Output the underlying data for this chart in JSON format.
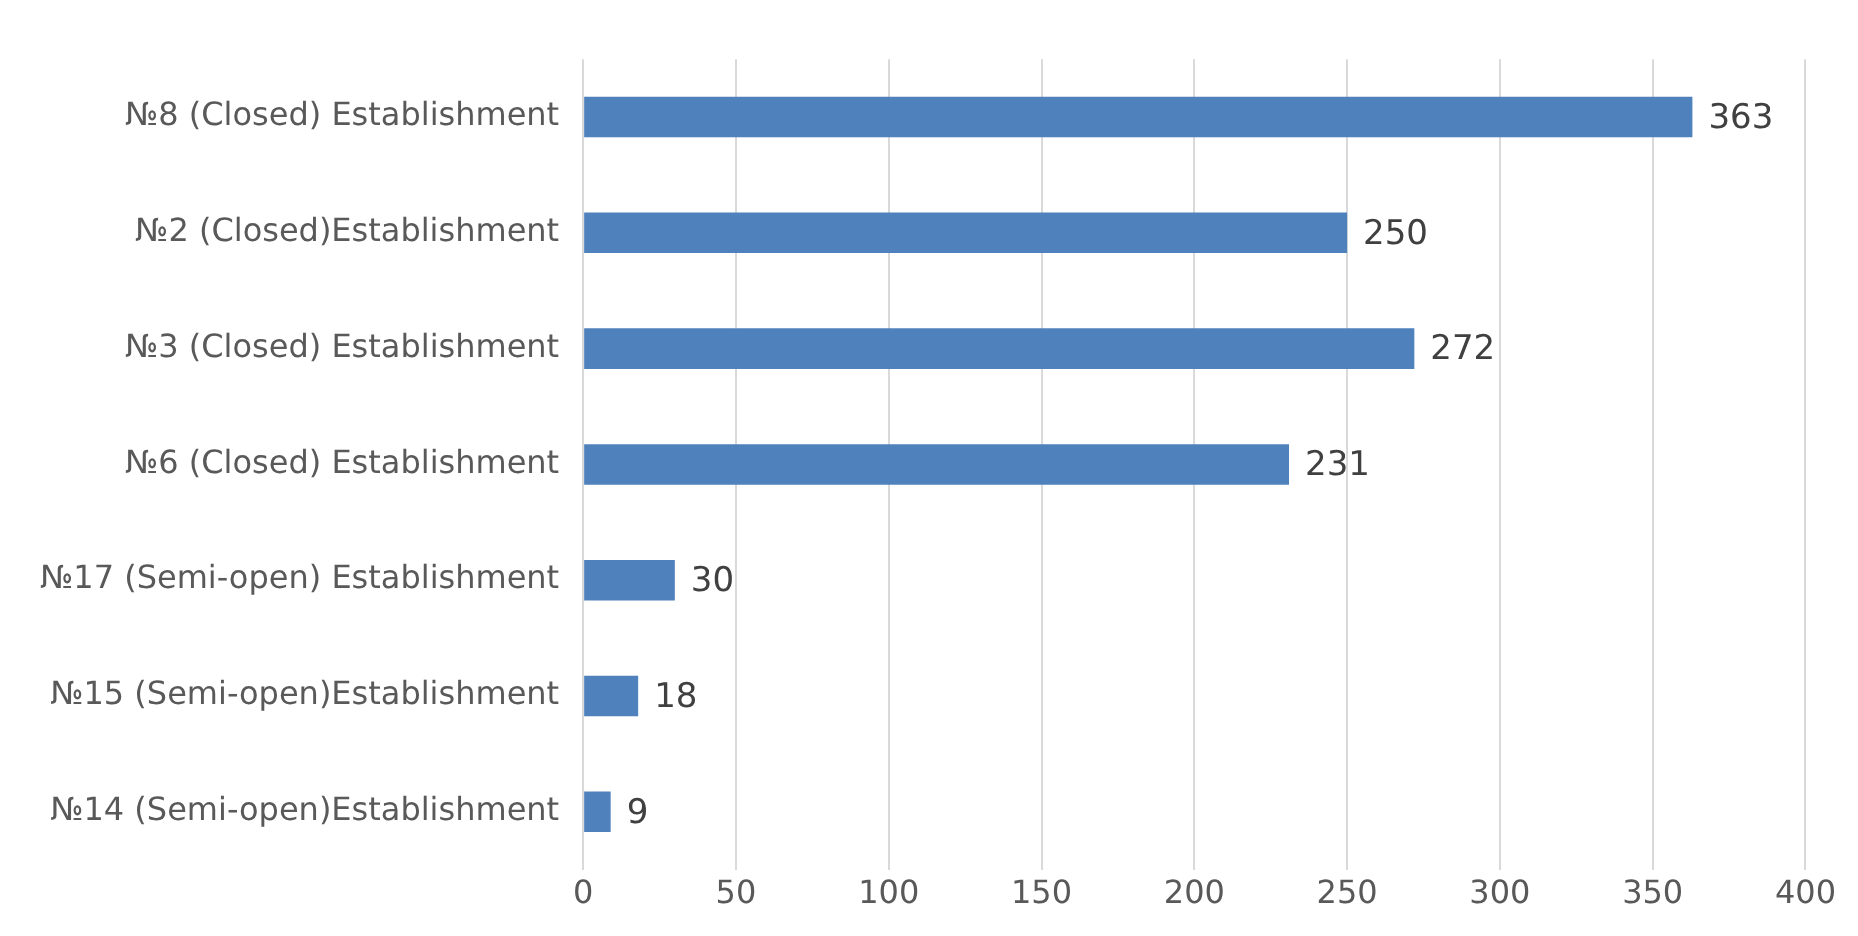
{
  "chart_data": {
    "type": "bar",
    "orientation": "horizontal",
    "categories": [
      "№8 (Closed) Establishment",
      "№2 (Closed)Establishment",
      "№3 (Closed) Establishment",
      "№6 (Closed) Establishment",
      "№17 (Semi-open) Establishment",
      "№15 (Semi-open)Establishment",
      "№14 (Semi-open)Establishment"
    ],
    "values": [
      363,
      250,
      272,
      231,
      30,
      18,
      9
    ],
    "color": "#4f81bd",
    "xlim": [
      0,
      400
    ],
    "xticks": [
      0,
      50,
      100,
      150,
      200,
      250,
      300,
      350,
      400
    ],
    "grid": "x",
    "data_labels": true,
    "legend": false
  }
}
